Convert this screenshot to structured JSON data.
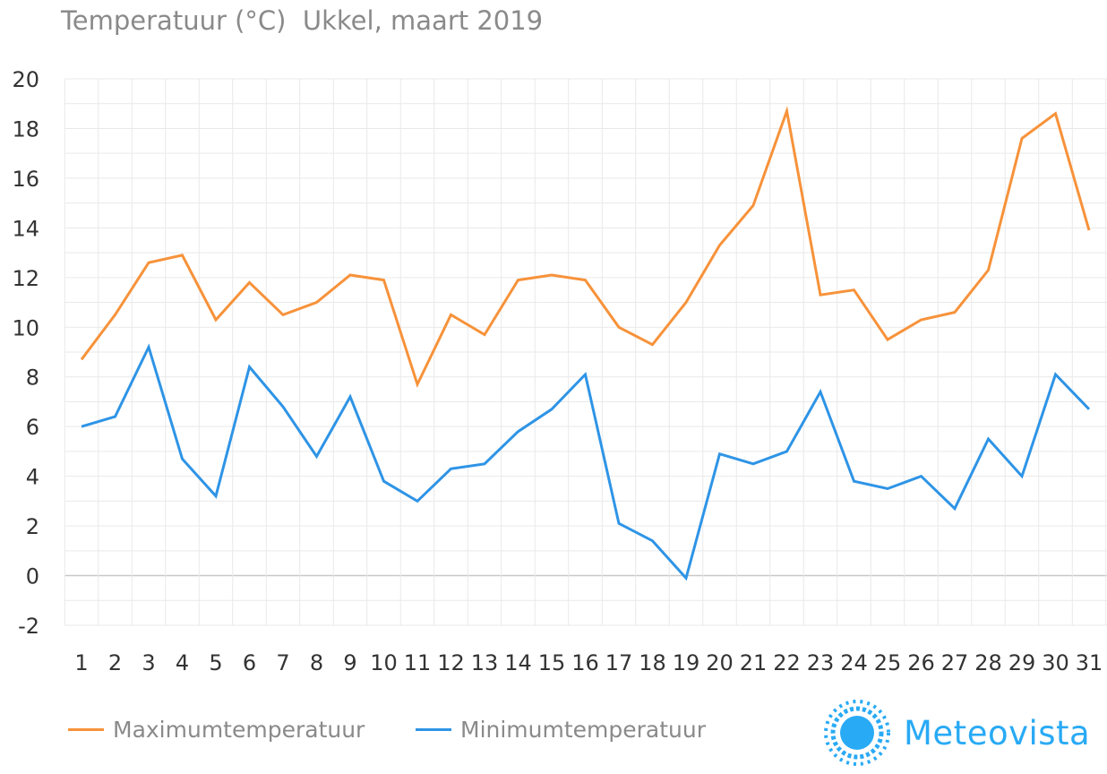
{
  "chart_data": {
    "type": "line",
    "title": "Temperatuur (°C)  Ukkel, maart 2019",
    "xlabel": "",
    "ylabel": "",
    "ylim": [
      -2,
      20
    ],
    "yticks": [
      "20",
      "18",
      "16",
      "14",
      "12",
      "10",
      "8",
      "6",
      "4",
      "2",
      "0",
      "-2"
    ],
    "grid": true,
    "legend_position": "bottom-left",
    "categories": [
      "1",
      "2",
      "3",
      "4",
      "5",
      "6",
      "7",
      "8",
      "9",
      "10",
      "11",
      "12",
      "13",
      "14",
      "15",
      "16",
      "17",
      "18",
      "19",
      "20",
      "21",
      "22",
      "23",
      "24",
      "25",
      "26",
      "27",
      "28",
      "29",
      "30",
      "31"
    ],
    "series": [
      {
        "name": "Maximumtemperatuur",
        "color": "#f7923a",
        "values": [
          8.7,
          10.5,
          12.6,
          12.9,
          10.3,
          11.8,
          10.5,
          11.0,
          12.1,
          11.9,
          7.7,
          10.5,
          9.7,
          11.9,
          12.1,
          11.9,
          10.0,
          9.3,
          11.0,
          13.3,
          14.9,
          18.7,
          11.3,
          11.5,
          9.5,
          10.3,
          10.6,
          12.3,
          17.6,
          18.6,
          13.9
        ]
      },
      {
        "name": "Minimumtemperatuur",
        "color": "#2e94e6",
        "values": [
          6.0,
          6.4,
          9.2,
          4.7,
          3.2,
          8.4,
          6.8,
          4.8,
          7.2,
          3.8,
          3.0,
          4.3,
          4.5,
          5.8,
          6.7,
          8.1,
          2.1,
          1.4,
          -0.1,
          4.9,
          4.5,
          5.0,
          7.4,
          3.8,
          3.5,
          4.0,
          2.7,
          5.5,
          4.0,
          8.1,
          6.7
        ]
      }
    ]
  },
  "brand": {
    "name": "Meteovista",
    "color": "#29aaf5",
    "icon": "sun-icon"
  }
}
